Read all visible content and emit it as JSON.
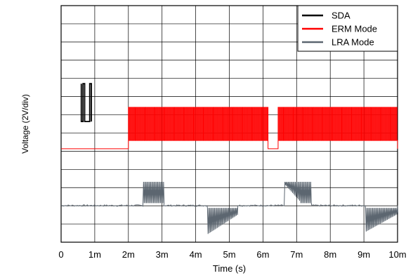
{
  "chart_data": {
    "type": "line",
    "title": "",
    "xlabel": "Time (s)",
    "ylabel": "Voltage (2V/div)",
    "xlim": [
      0,
      10
    ],
    "ylim": [
      0,
      10
    ],
    "grid": true,
    "legend_position": "top-right",
    "x_ticks": [
      {
        "value": 0,
        "label": "0"
      },
      {
        "value": 1,
        "label": "1m"
      },
      {
        "value": 2,
        "label": "2m"
      },
      {
        "value": 3,
        "label": "3m"
      },
      {
        "value": 4,
        "label": "4m"
      },
      {
        "value": 5,
        "label": "5m"
      },
      {
        "value": 6,
        "label": "6m"
      },
      {
        "value": 7,
        "label": "7m"
      },
      {
        "value": 8,
        "label": "8m"
      },
      {
        "value": 9,
        "label": "9m"
      },
      {
        "value": 10,
        "label": "10m"
      }
    ],
    "series": [
      {
        "name": "SDA",
        "color": "#000000",
        "style": "digital",
        "x": [
          0.6,
          0.6,
          0.65,
          0.65,
          0.7,
          0.7,
          0.85,
          0.85,
          0.9,
          0.9
        ],
        "y": [
          6.7,
          5.1,
          5.1,
          6.7,
          6.7,
          5.1,
          5.1,
          6.7,
          6.7,
          5.1
        ],
        "baseline_from": 0.6,
        "baseline_to": 0.9
      },
      {
        "name": "ERM Mode",
        "color": "#ff0000",
        "style": "pwm",
        "baseline": 3.95,
        "high": 5.7,
        "low": 4.3,
        "x_start": 0,
        "x_end": 10,
        "bursts": [
          [
            2.0,
            6.15
          ],
          [
            6.45,
            10.0
          ]
        ],
        "period": 0.045
      },
      {
        "name": "LRA Mode",
        "color": "#5c6670",
        "style": "bursts",
        "baseline": 1.55,
        "x_start": 0,
        "x_end": 10,
        "segments": [
          {
            "x": [
              2.45,
              3.05
            ],
            "high": 2.55,
            "low": 1.65,
            "shape": "square-up"
          },
          {
            "x": [
              4.35,
              5.25
            ],
            "high": 1.45,
            "low": 0.35,
            "shape": "decay-down"
          },
          {
            "x": [
              6.65,
              7.45
            ],
            "high": 2.55,
            "low": 1.65,
            "shape": "ramp-up"
          },
          {
            "x": [
              9.05,
              10.0
            ],
            "high": 1.45,
            "low": 0.45,
            "shape": "decay-down"
          }
        ],
        "period": 0.035
      }
    ]
  }
}
